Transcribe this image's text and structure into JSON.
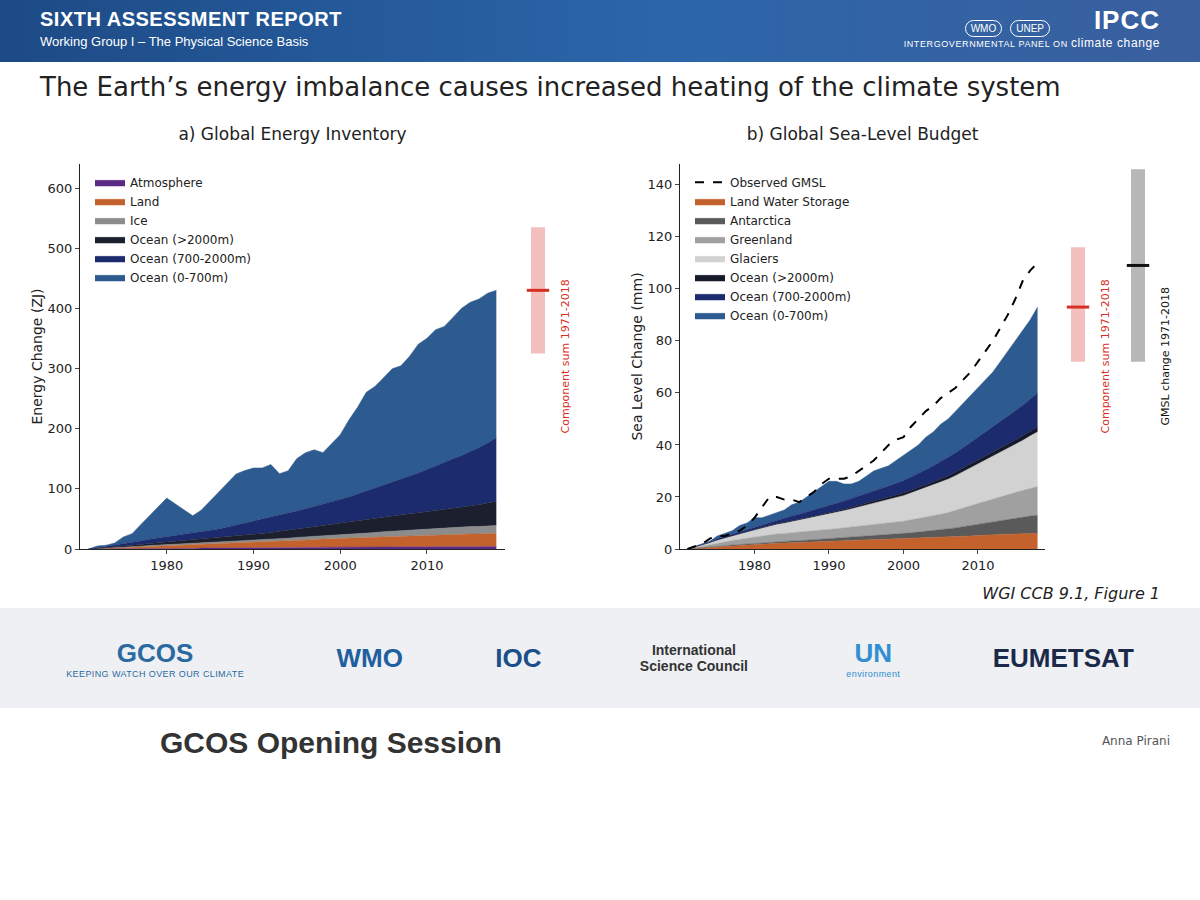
{
  "page": {
    "header": {
      "title": "SIXTH ASSESSMENT REPORT",
      "subtitle": "Working Group I – The Physical Science Basis",
      "org": "IPCC",
      "org_full": "INTERGOVERNMENTAL PANEL ON",
      "org_full_2": "climate change",
      "partners": [
        "WMO",
        "UNEP"
      ]
    },
    "slide_title": "The Earth’s energy imbalance causes increased heating of the climate system",
    "source": "WGI CCB 9.1, Figure 1",
    "footer_logos": [
      {
        "text": "GCOS",
        "sub": "KEEPING WATCH OVER OUR CLIMATE"
      },
      {
        "text": "WMO"
      },
      {
        "text": "IOC"
      },
      {
        "text": "International Science Council"
      },
      {
        "text": "UN",
        "sub": "environment"
      },
      {
        "text": "EUMETSAT"
      }
    ],
    "session": "GCOS Opening Session",
    "speaker": "Anna Pirani"
  },
  "chart_data": [
    {
      "type": "area",
      "title": "a) Global Energy Inventory",
      "ylabel": "Energy Change (ZJ)",
      "stacked": true,
      "grid": false,
      "legend": "upper left",
      "x": [
        1971,
        1972,
        1973,
        1974,
        1975,
        1976,
        1977,
        1978,
        1979,
        1980,
        1981,
        1982,
        1983,
        1984,
        1985,
        1986,
        1987,
        1988,
        1989,
        1990,
        1991,
        1992,
        1993,
        1994,
        1995,
        1996,
        1997,
        1998,
        1999,
        2000,
        2001,
        2002,
        2003,
        2004,
        2005,
        2006,
        2007,
        2008,
        2009,
        2010,
        2011,
        2012,
        2013,
        2014,
        2015,
        2016,
        2017,
        2018
      ],
      "xlim": [
        1970,
        2019
      ],
      "xticks": [
        1980,
        1990,
        2000,
        2010
      ],
      "ylim": [
        0,
        640
      ],
      "yticks": [
        0,
        100,
        200,
        300,
        400,
        500,
        600
      ],
      "series": [
        {
          "name": "Ocean (0-700m)",
          "color": "#2d5b8f",
          "values": [
            0,
            3,
            2,
            3,
            11,
            14,
            27,
            39,
            52,
            65,
            53,
            41,
            29,
            36,
            49,
            62,
            74,
            85,
            87,
            88,
            85,
            87,
            69,
            71,
            87,
            93,
            94,
            85,
            96,
            107,
            128,
            144,
            164,
            169,
            178,
            188,
            188,
            199,
            214,
            218,
            226,
            226,
            235,
            245,
            248,
            247,
            249,
            245
          ]
        },
        {
          "name": "Ocean (700-2000m)",
          "color": "#1c2a6e",
          "values": [
            0,
            1,
            2,
            3,
            4,
            5,
            6,
            7,
            8,
            8,
            9,
            10,
            11,
            12,
            13,
            14,
            16,
            18,
            20,
            22,
            24,
            26,
            27,
            28,
            30,
            32,
            34,
            36,
            38,
            40,
            42,
            45,
            48,
            51,
            54,
            57,
            60,
            63,
            66,
            70,
            74,
            78,
            82,
            86,
            90,
            95,
            100,
            106
          ]
        },
        {
          "name": "Ocean (>2000m)",
          "color": "#1b1f2e",
          "values": [
            0,
            0.5,
            1,
            1.5,
            2,
            2.5,
            3,
            3.5,
            4,
            4.5,
            5,
            5.5,
            6,
            6.5,
            7,
            7.5,
            8,
            8.5,
            9,
            9.5,
            10,
            11,
            12,
            13,
            14,
            15,
            16,
            17,
            18,
            19,
            20,
            21,
            22,
            23,
            24,
            25,
            26,
            27,
            28,
            29,
            30,
            31,
            32,
            33,
            35,
            36,
            38,
            40
          ]
        },
        {
          "name": "Ice",
          "color": "#8c8c8c",
          "values": [
            0,
            0.1,
            0.2,
            0.4,
            0.6,
            0.8,
            1,
            1.2,
            1.4,
            1.6,
            1.8,
            2,
            2.2,
            2.4,
            2.6,
            2.8,
            3,
            3.2,
            3.4,
            3.6,
            3.8,
            4,
            4.2,
            4.5,
            4.8,
            5.1,
            5.4,
            5.7,
            6,
            6.3,
            6.6,
            7,
            7.4,
            7.8,
            8.2,
            8.6,
            9,
            9.4,
            9.8,
            10.2,
            10.6,
            11,
            11.4,
            11.8,
            12.2,
            12.5,
            12.8,
            13
          ]
        },
        {
          "name": "Land",
          "color": "#c4622d",
          "values": [
            0,
            0.5,
            1,
            1.5,
            2,
            2.5,
            3,
            3.5,
            4,
            4.5,
            5,
            5.5,
            6,
            6.5,
            7,
            7.5,
            8,
            8.5,
            9,
            9.5,
            10,
            10.5,
            11,
            11.5,
            12,
            12.5,
            13,
            13.5,
            14,
            14.5,
            15,
            15.5,
            16,
            16.5,
            17,
            17.5,
            18,
            18.5,
            19,
            19.5,
            20,
            20,
            20.5,
            20.5,
            21,
            21,
            21.5,
            22
          ]
        },
        {
          "name": "Atmosphere",
          "color": "#5b2a86",
          "values": [
            0,
            0,
            0,
            0.5,
            0.5,
            0.5,
            0.5,
            1,
            1,
            1,
            1,
            1,
            1,
            1.5,
            1.5,
            1.5,
            1.5,
            1.5,
            2,
            2,
            2,
            2,
            2,
            2,
            2.5,
            2.5,
            2.5,
            3,
            3,
            3,
            3,
            3,
            3,
            3,
            3.5,
            3.5,
            3.5,
            3.5,
            3.5,
            3.5,
            4,
            4,
            4,
            4,
            4,
            4,
            4,
            4
          ]
        }
      ],
      "ranges": [
        {
          "name": "Component sum 1971-2018",
          "value": 430,
          "low": 325,
          "high": 535,
          "color": "#d62f26"
        }
      ]
    },
    {
      "type": "area",
      "title": "b) Global Sea-Level Budget",
      "ylabel": "Sea Level Change (mm)",
      "stacked": true,
      "grid": false,
      "legend": "upper left",
      "x": [
        1971,
        1972,
        1973,
        1974,
        1975,
        1976,
        1977,
        1978,
        1979,
        1980,
        1981,
        1982,
        1983,
        1984,
        1985,
        1986,
        1987,
        1988,
        1989,
        1990,
        1991,
        1992,
        1993,
        1994,
        1995,
        1996,
        1997,
        1998,
        1999,
        2000,
        2001,
        2002,
        2003,
        2004,
        2005,
        2006,
        2007,
        2008,
        2009,
        2010,
        2011,
        2012,
        2013,
        2014,
        2015,
        2016,
        2017,
        2018
      ],
      "xlim": [
        1970,
        2019
      ],
      "xticks": [
        1980,
        1990,
        2000,
        2010
      ],
      "ylim": [
        0,
        148
      ],
      "yticks": [
        0,
        20,
        40,
        60,
        80,
        100,
        120,
        140
      ],
      "series": [
        {
          "name": "Ocean (0-700m)",
          "color": "#2d5b8f",
          "values": [
            0,
            0.1,
            0.1,
            0.2,
            1.1,
            1.2,
            1.2,
            2.4,
            2.4,
            3.6,
            2.7,
            2.8,
            2.9,
            3.2,
            4.3,
            4.6,
            5.8,
            7,
            8.2,
            9.4,
            8.4,
            6.5,
            5.5,
            5.6,
            6.6,
            7.7,
            7.7,
            7.8,
            8.8,
            9.7,
            10.3,
            11,
            12.5,
            13,
            14.4,
            14.9,
            16,
            17.1,
            18.1,
            19.2,
            20.1,
            21.2,
            23.2,
            25.2,
            26.9,
            28.7,
            30.3,
            33
          ]
        },
        {
          "name": "Ocean (700-2000m)",
          "color": "#1c2a6e",
          "values": [
            0,
            0.1,
            0.2,
            0.3,
            0.4,
            0.5,
            0.6,
            0.7,
            0.8,
            0.9,
            1,
            1.2,
            1.4,
            1.6,
            1.8,
            2,
            2.2,
            2.4,
            2.6,
            2.8,
            3,
            3.2,
            3.4,
            3.6,
            3.8,
            4,
            4.2,
            4.4,
            4.6,
            4.8,
            5.1,
            5.4,
            5.8,
            6.2,
            6.6,
            7,
            7.4,
            7.8,
            8.2,
            8.6,
            9.1,
            9.6,
            10.1,
            10.6,
            11.2,
            11.8,
            12.4,
            13
          ]
        },
        {
          "name": "Ocean (>2000m)",
          "color": "#16192a",
          "values": [
            0,
            0,
            0,
            0,
            0.1,
            0.1,
            0.1,
            0.1,
            0.2,
            0.2,
            0.2,
            0.3,
            0.3,
            0.3,
            0.4,
            0.4,
            0.4,
            0.5,
            0.5,
            0.5,
            0.6,
            0.6,
            0.7,
            0.7,
            0.8,
            0.8,
            0.9,
            0.9,
            1,
            1,
            1.1,
            1.1,
            1.2,
            1.2,
            1.3,
            1.3,
            1.4,
            1.4,
            1.5,
            1.5,
            1.6,
            1.6,
            1.7,
            1.7,
            1.8,
            1.8,
            1.9,
            2
          ]
        },
        {
          "name": "Glaciers",
          "color": "#d2d2d2",
          "values": [
            0,
            0.3,
            0.6,
            0.9,
            1.2,
            1.5,
            1.8,
            2.1,
            2.4,
            2.7,
            3,
            3.3,
            3.6,
            3.9,
            4.2,
            4.5,
            4.8,
            5.1,
            5.4,
            5.8,
            6.2,
            6.6,
            7,
            7.4,
            7.8,
            8.2,
            8.6,
            9,
            9.4,
            9.8,
            10.3,
            10.8,
            11.3,
            11.8,
            12.3,
            12.8,
            13.4,
            14,
            14.6,
            15.2,
            15.8,
            16.4,
            17,
            17.7,
            18.4,
            19.2,
            20,
            21
          ]
        },
        {
          "name": "Greenland",
          "color": "#a0a0a0",
          "values": [
            0,
            0.3,
            0.6,
            0.9,
            1.2,
            1.5,
            1.8,
            2,
            2.2,
            2.4,
            2.6,
            2.8,
            3,
            3.1,
            3.2,
            3.3,
            3.4,
            3.5,
            3.6,
            3.7,
            3.8,
            3.9,
            4,
            4.1,
            4.2,
            4.3,
            4.4,
            4.5,
            4.6,
            4.8,
            5,
            5.2,
            5.4,
            5.7,
            6,
            6.3,
            6.7,
            7.1,
            7.5,
            7.9,
            8.3,
            8.7,
            9.1,
            9.5,
            9.9,
            10.3,
            10.7,
            11
          ]
        },
        {
          "name": "Antarctica",
          "color": "#5a5a5a",
          "values": [
            0,
            0,
            0.1,
            0.1,
            0.2,
            0.2,
            0.3,
            0.3,
            0.4,
            0.4,
            0.5,
            0.5,
            0.6,
            0.6,
            0.7,
            0.7,
            0.8,
            0.8,
            0.9,
            0.9,
            1,
            1.1,
            1.2,
            1.3,
            1.4,
            1.5,
            1.6,
            1.7,
            1.8,
            2,
            2.2,
            2.4,
            2.6,
            2.8,
            3,
            3.2,
            3.5,
            3.8,
            4.1,
            4.4,
            4.7,
            5,
            5.3,
            5.6,
            6,
            6.3,
            6.7,
            7
          ]
        },
        {
          "name": "Land Water Storage",
          "color": "#c4622d",
          "values": [
            0,
            0.2,
            0.4,
            0.6,
            0.8,
            1,
            1.2,
            1.4,
            1.6,
            1.8,
            2,
            2.1,
            2.2,
            2.3,
            2.4,
            2.5,
            2.6,
            2.7,
            2.8,
            2.9,
            3,
            3.1,
            3.2,
            3.3,
            3.4,
            3.5,
            3.6,
            3.7,
            3.8,
            3.9,
            4,
            4.1,
            4.2,
            4.3,
            4.4,
            4.5,
            4.6,
            4.8,
            5,
            5.2,
            5.4,
            5.5,
            5.6,
            5.7,
            5.8,
            5.9,
            6,
            6
          ]
        },
        {
          "name": "Observed GMSL",
          "type": "line",
          "line_style": "dashed",
          "color": "#000000",
          "values": [
            0,
            1,
            2,
            4,
            5,
            5,
            6,
            7,
            9,
            12,
            16,
            20,
            20,
            19,
            19,
            18,
            20,
            22,
            25,
            27,
            27,
            27,
            28,
            30,
            32,
            34,
            37,
            40,
            42,
            43,
            47,
            50,
            53,
            55,
            58,
            60,
            62,
            65,
            68,
            72,
            76,
            80,
            85,
            90,
            96,
            103,
            107,
            110
          ]
        }
      ],
      "ranges": [
        {
          "name": "Component sum 1971-2018",
          "value": 93,
          "low": 72,
          "high": 116,
          "color": "#d62f26"
        },
        {
          "name": "GMSL change 1971-2018",
          "value": 109,
          "low": 72,
          "high": 146,
          "color": "#111111"
        }
      ]
    }
  ]
}
